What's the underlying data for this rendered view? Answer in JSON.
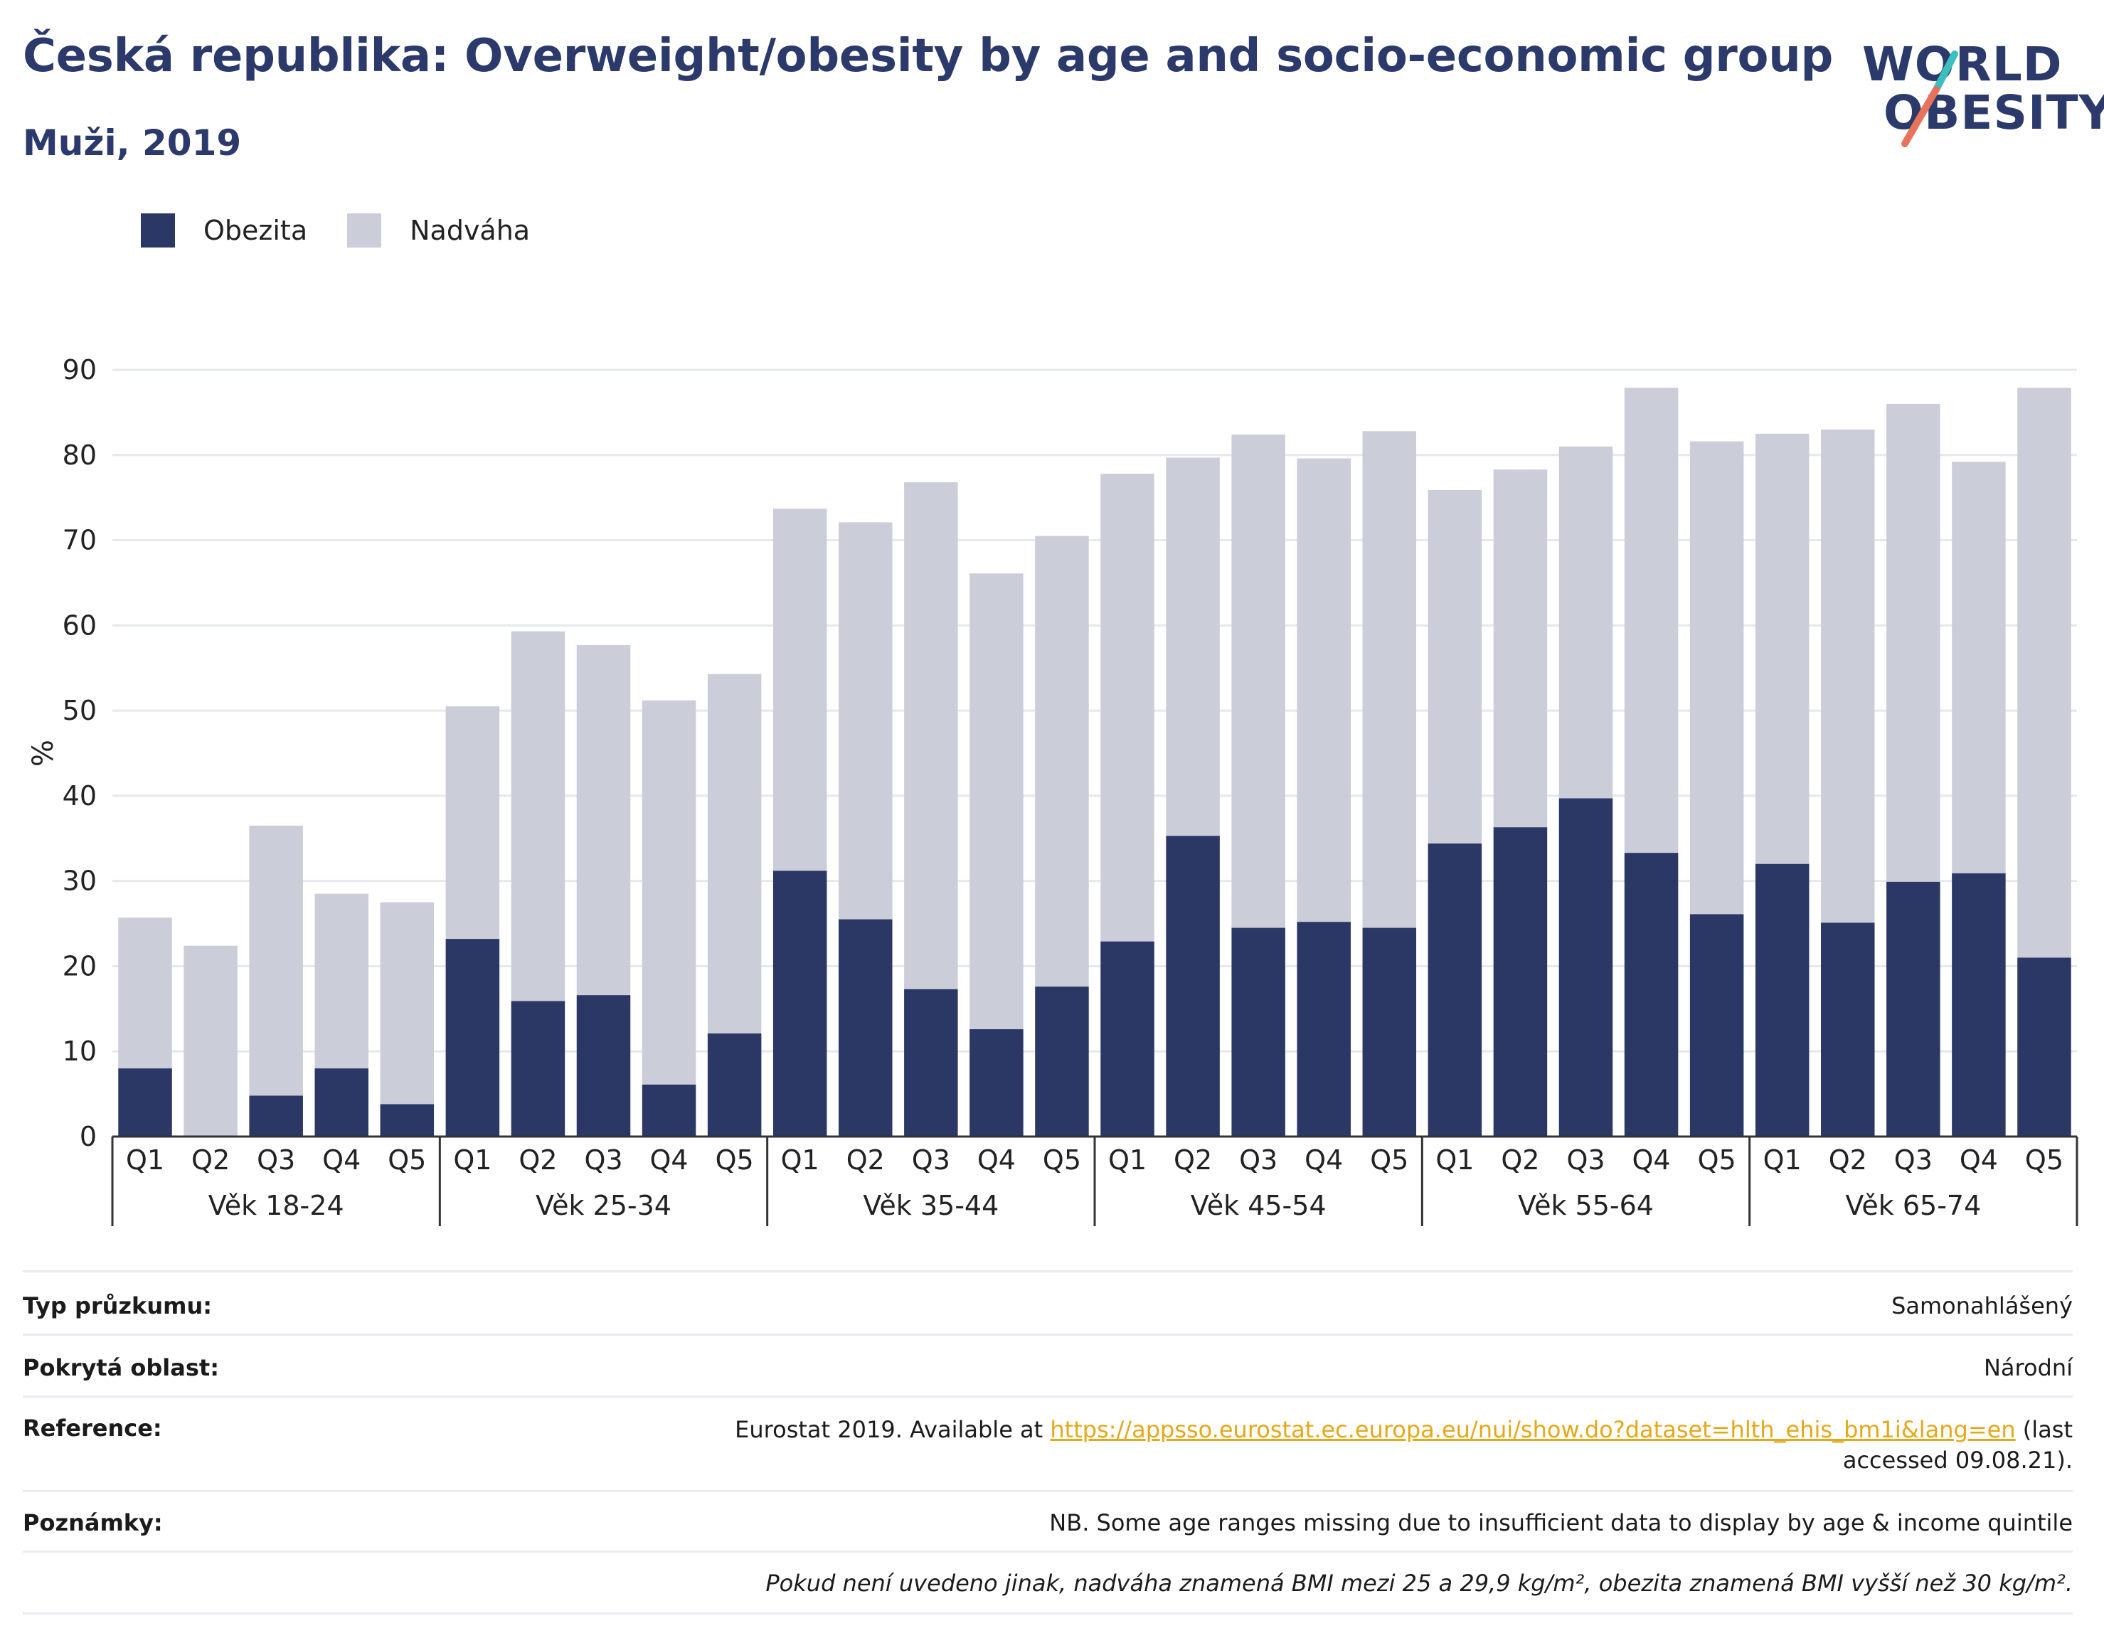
{
  "header": {
    "title": "Česká republika: Overweight/obesity by age and socio-economic group",
    "subtitle": "Muži, 2019"
  },
  "logo": {
    "line1": "WORLD",
    "line2": "OBESITY",
    "accent_teal": "#3bbfbf",
    "accent_coral": "#e8735a"
  },
  "colors": {
    "obesity": "#2b3765",
    "overweight": "#cbcdd8",
    "grid": "#e6e8ee",
    "axis": "#333333"
  },
  "legend": [
    {
      "label": "Obezita",
      "color": "#2b3765"
    },
    {
      "label": "Nadváha",
      "color": "#cbcdd8"
    }
  ],
  "chart_data": {
    "type": "bar",
    "stacked": true,
    "ylabel": "%",
    "ylim": [
      0,
      90
    ],
    "yticks": [
      0,
      10,
      20,
      30,
      40,
      50,
      60,
      70,
      80,
      90
    ],
    "grid": true,
    "legend_position": "top-left",
    "groups": [
      "Věk 18-24",
      "Věk 25-34",
      "Věk 35-44",
      "Věk 45-54",
      "Věk 55-64",
      "Věk 65-74"
    ],
    "quintiles": [
      "Q1",
      "Q2",
      "Q3",
      "Q4",
      "Q5"
    ],
    "series": [
      {
        "name": "Obezita",
        "values": [
          8,
          0,
          4.8,
          8,
          3.8,
          23.2,
          15.9,
          16.6,
          6.1,
          12.1,
          31.2,
          25.5,
          17.3,
          12.6,
          17.6,
          22.9,
          35.3,
          24.5,
          25.2,
          24.5,
          34.4,
          36.3,
          39.7,
          33.3,
          26.1,
          32.0,
          25.1,
          29.9,
          30.9,
          21.0
        ]
      },
      {
        "name": "Nadváha",
        "values": [
          17.7,
          22.4,
          31.7,
          20.5,
          23.7,
          27.3,
          43.4,
          41.1,
          45.1,
          42.2,
          42.5,
          46.6,
          59.5,
          53.5,
          52.9,
          54.9,
          44.4,
          57.9,
          54.4,
          58.3,
          41.5,
          42.0,
          41.3,
          54.6,
          55.5,
          50.5,
          57.9,
          56.1,
          48.3,
          66.9
        ]
      }
    ]
  },
  "info": {
    "survey_type": {
      "label": "Typ průzkumu:",
      "value": "Samonahlášený"
    },
    "coverage": {
      "label": "Pokrytá oblast:",
      "value": "Národní"
    },
    "reference": {
      "label": "Reference:",
      "text_before": "Eurostat 2019. Available at ",
      "link": "https://appsso.eurostat.ec.europa.eu/nui/show.do?dataset=hlth_ehis_bm1i&lang=en",
      "text_after": " (last accessed 09.08.21)."
    },
    "notes": {
      "label": "Poznámky:",
      "value": "NB. Some age ranges missing due to insufficient data to display by age & income quintile"
    },
    "footnote": "Pokud není uvedeno jinak, nadváha znamená BMI mezi 25 a 29,9 kg/m², obezita znamená BMI vyšší než 30 kg/m²."
  }
}
